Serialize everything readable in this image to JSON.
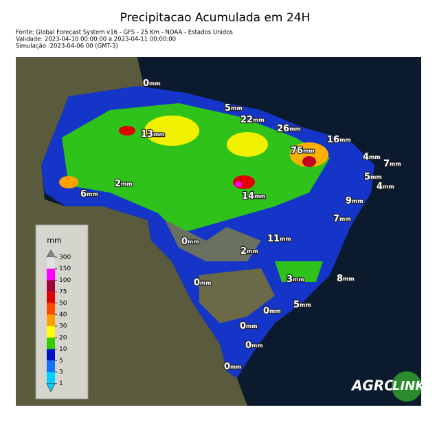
{
  "header": {
    "title": "Precipitacao Acumulada em 24H",
    "lines": [
      "Fonte: Global Forecast System v16 - GFS - 25 Km - NOAA - Estados Unidos",
      "Validade: 2023-04-10 00:00:00 a 2023-04-11 00:00:00",
      "Simulação :2023-04-06 00 (GMT-3)"
    ]
  },
  "labels": [
    {
      "value": 0,
      "unit": "mm"
    },
    {
      "value": 5,
      "unit": "mm"
    },
    {
      "value": 22,
      "unit": "mm"
    },
    {
      "value": 26,
      "unit": "mm"
    },
    {
      "value": 16,
      "unit": "mm"
    },
    {
      "value": 13,
      "unit": "mm"
    },
    {
      "value": 76,
      "unit": "mm"
    },
    {
      "value": 4,
      "unit": "mm"
    },
    {
      "value": 7,
      "unit": "mm"
    },
    {
      "value": 5,
      "unit": "mm"
    },
    {
      "value": 4,
      "unit": "mm"
    },
    {
      "value": 2,
      "unit": "mm"
    },
    {
      "value": 6,
      "unit": "mm"
    },
    {
      "value": 14,
      "unit": "mm"
    },
    {
      "value": 9,
      "unit": "mm"
    },
    {
      "value": 7,
      "unit": "mm"
    },
    {
      "value": 0,
      "unit": "mm"
    },
    {
      "value": 11,
      "unit": "mm"
    },
    {
      "value": 2,
      "unit": "mm"
    },
    {
      "value": 0,
      "unit": "mm"
    },
    {
      "value": 3,
      "unit": "mm"
    },
    {
      "value": 8,
      "unit": "mm"
    },
    {
      "value": 5,
      "unit": "mm"
    },
    {
      "value": 0,
      "unit": "mm"
    },
    {
      "value": 0,
      "unit": "mm"
    },
    {
      "value": 0,
      "unit": "mm"
    },
    {
      "value": 0,
      "unit": "mm"
    }
  ],
  "legend": {
    "unit": "mm",
    "ticks": [
      {
        "value": 300,
        "color": "#8a8a8a"
      },
      {
        "value": 150,
        "color": "#e0e0e0"
      },
      {
        "value": 100,
        "color": "#ff00ff"
      },
      {
        "value": 75,
        "color": "#a0003c"
      },
      {
        "value": 50,
        "color": "#e00000"
      },
      {
        "value": 40,
        "color": "#ff4a00"
      },
      {
        "value": 30,
        "color": "#ffa000"
      },
      {
        "value": 20,
        "color": "#ffff00"
      },
      {
        "value": 10,
        "color": "#33cc00"
      },
      {
        "value": 5,
        "color": "#0010c8"
      },
      {
        "value": 3,
        "color": "#1070ff"
      },
      {
        "value": 1,
        "color": "#00d0ff"
      }
    ]
  },
  "logo": {
    "left": "AGRO",
    "right": "LINK"
  }
}
